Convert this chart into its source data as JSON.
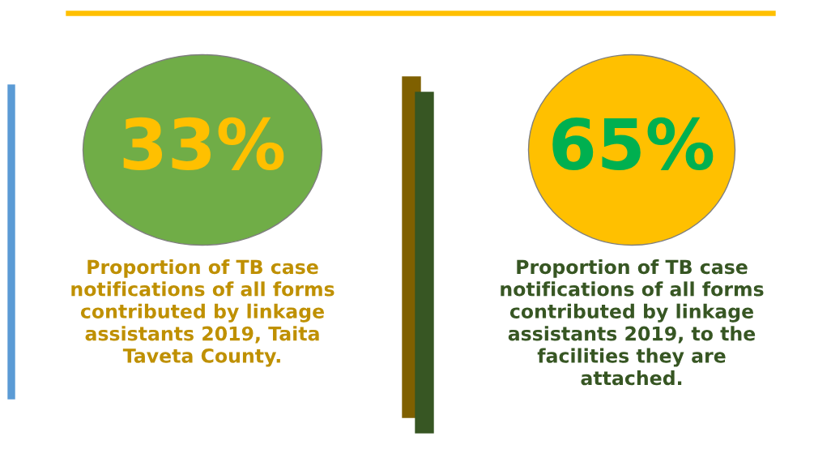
{
  "chart_data": [
    {
      "type": "other",
      "values": [
        33
      ],
      "value_labels": [
        "33%"
      ],
      "colors": [
        "#70ad47"
      ],
      "annotations": [
        "Proportion of TB case\nnotifications of all forms\ncontributed by linkage\nassistants 2019, Taita\nTaveta County."
      ]
    },
    {
      "type": "other",
      "values": [
        65
      ],
      "value_labels": [
        "65%"
      ],
      "colors": [
        "#ffc000"
      ],
      "annotations": [
        "Proportion of TB case\nnotifications of all forms\ncontributed by linkage\nassistants 2019, to the\nfacilities they are\nattached."
      ]
    }
  ]
}
